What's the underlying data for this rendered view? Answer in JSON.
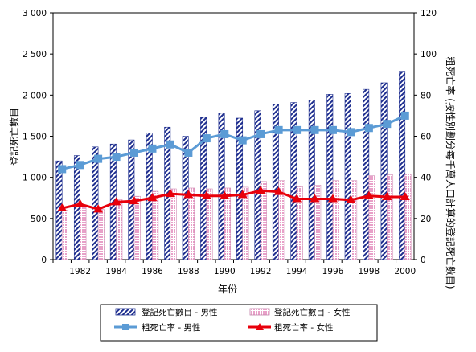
{
  "chart_data": {
    "type": "bar",
    "categories": [
      1981,
      1982,
      1983,
      1984,
      1985,
      1986,
      1987,
      1988,
      1989,
      1990,
      1991,
      1992,
      1993,
      1994,
      1995,
      1996,
      1997,
      1998,
      1999,
      2000
    ],
    "x_tick_labels": [
      "1982",
      "1984",
      "1986",
      "1988",
      "1990",
      "1992",
      "1994",
      "1996",
      "1998",
      "2000"
    ],
    "xlabel": "年份",
    "ylabel_left": "登記死亡數目",
    "ylabel_right": "粗死亡率 (按性別劃分每千萬人口計算的登記死亡數目)",
    "ylim_left": [
      0,
      3000
    ],
    "ylim_right": [
      0,
      120
    ],
    "y_ticks_left": [
      "0",
      "500",
      "1 000",
      "1 500",
      "2 000",
      "2 500",
      "3 000"
    ],
    "y_ticks_right": [
      "0",
      "20",
      "40",
      "60",
      "80",
      "100",
      "120"
    ],
    "grid": false,
    "legend_position": "bottom",
    "series": [
      {
        "name": "登記死亡數目 - 男性",
        "kind": "bar",
        "axis": "left",
        "color": "#1f2f8f",
        "values": [
          1200,
          1265,
          1370,
          1405,
          1455,
          1540,
          1610,
          1500,
          1730,
          1780,
          1720,
          1810,
          1890,
          1910,
          1940,
          2010,
          2020,
          2070,
          2150,
          2290
        ]
      },
      {
        "name": "登記死亡數目 - 女性",
        "kind": "bar",
        "axis": "left",
        "color": "#e8a0c8",
        "values": [
          600,
          650,
          610,
          730,
          770,
          830,
          860,
          870,
          860,
          870,
          880,
          950,
          960,
          885,
          905,
          960,
          960,
          1020,
          1030,
          1040
        ]
      },
      {
        "name": "粗死亡率 - 男性",
        "kind": "line",
        "axis": "right",
        "color": "#5b9bd5",
        "values": [
          44,
          46,
          49,
          50,
          52,
          54,
          56,
          52,
          59,
          61,
          58,
          61,
          63,
          63,
          63,
          63,
          62,
          64,
          66,
          70
        ]
      },
      {
        "name": "粗死亡率 - 女性",
        "kind": "line",
        "axis": "right",
        "color": "#e8000b",
        "values": [
          25,
          27,
          24.5,
          28,
          28.5,
          30,
          32,
          31.5,
          31,
          31,
          31.5,
          33.5,
          33,
          29.5,
          29.5,
          29.5,
          29,
          31,
          30.5,
          30.5
        ]
      }
    ]
  }
}
